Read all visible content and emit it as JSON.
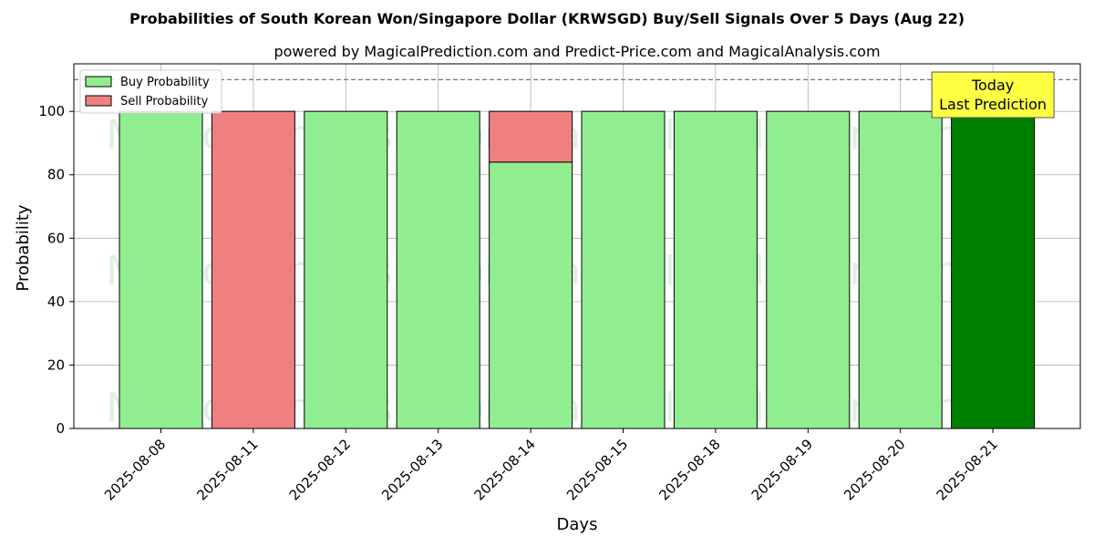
{
  "chart_data": {
    "type": "bar",
    "stacked": true,
    "title": "Probabilities of South Korean Won/Singapore Dollar (KRWSGD) Buy/Sell Signals Over 5 Days (Aug 22)",
    "subtitle": "powered by MagicalPrediction.com and Predict-Price.com and MagicalAnalysis.com",
    "xlabel": "Days",
    "ylabel": "Probability",
    "ylim": [
      0,
      115
    ],
    "yticks": [
      0,
      20,
      40,
      60,
      80,
      100
    ],
    "reference_line": 110,
    "grid": true,
    "legend_position": "top-left",
    "categories": [
      "2025-08-08",
      "2025-08-11",
      "2025-08-12",
      "2025-08-13",
      "2025-08-14",
      "2025-08-15",
      "2025-08-18",
      "2025-08-19",
      "2025-08-20",
      "2025-08-21"
    ],
    "series": [
      {
        "name": "Buy Probability",
        "color": "#90ee90",
        "values": [
          100,
          0,
          100,
          100,
          84,
          100,
          100,
          100,
          100,
          100
        ]
      },
      {
        "name": "Sell Probability",
        "color": "#f08080",
        "values": [
          0,
          100,
          0,
          0,
          16,
          0,
          0,
          0,
          0,
          0
        ]
      }
    ],
    "highlight": {
      "category": "2025-08-21",
      "color": "#008000"
    },
    "annotation": {
      "lines": [
        "Today",
        "Last Prediction"
      ],
      "color": "#ffff44"
    },
    "watermarks": [
      "MagicalAnalysis.com",
      "MagicalPrediction.com"
    ]
  }
}
